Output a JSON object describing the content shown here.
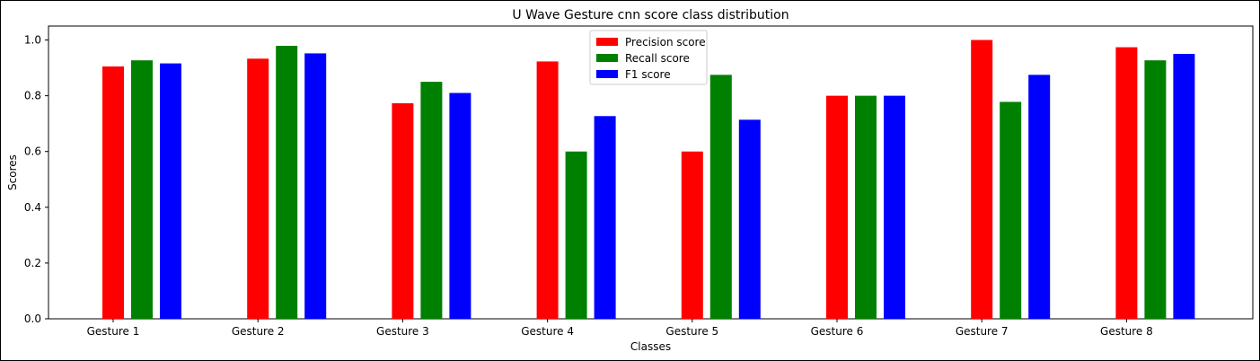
{
  "chart_data": {
    "type": "bar",
    "title": "U Wave Gesture cnn score class distribution",
    "xlabel": "Classes",
    "ylabel": "Scores",
    "ylim": [
      0,
      1.05
    ],
    "yticks": [
      "0.0",
      "0.2",
      "0.4",
      "0.6",
      "0.8",
      "1.0"
    ],
    "categories": [
      "Gesture 1",
      "Gesture 2",
      "Gesture 3",
      "Gesture 4",
      "Gesture 5",
      "Gesture 6",
      "Gesture 7",
      "Gesture 8"
    ],
    "series": [
      {
        "name": "Precision score",
        "color": "#ff0000",
        "values": [
          0.905,
          0.933,
          0.773,
          0.923,
          0.6,
          0.8,
          1.0,
          0.974
        ]
      },
      {
        "name": "Recall score",
        "color": "#008000",
        "values": [
          0.927,
          0.979,
          0.85,
          0.6,
          0.875,
          0.8,
          0.778,
          0.927
        ]
      },
      {
        "name": "F1 score",
        "color": "#0000ff",
        "values": [
          0.916,
          0.952,
          0.81,
          0.727,
          0.714,
          0.8,
          0.875,
          0.95
        ]
      }
    ],
    "legend_position": "top-center",
    "grid": false
  }
}
